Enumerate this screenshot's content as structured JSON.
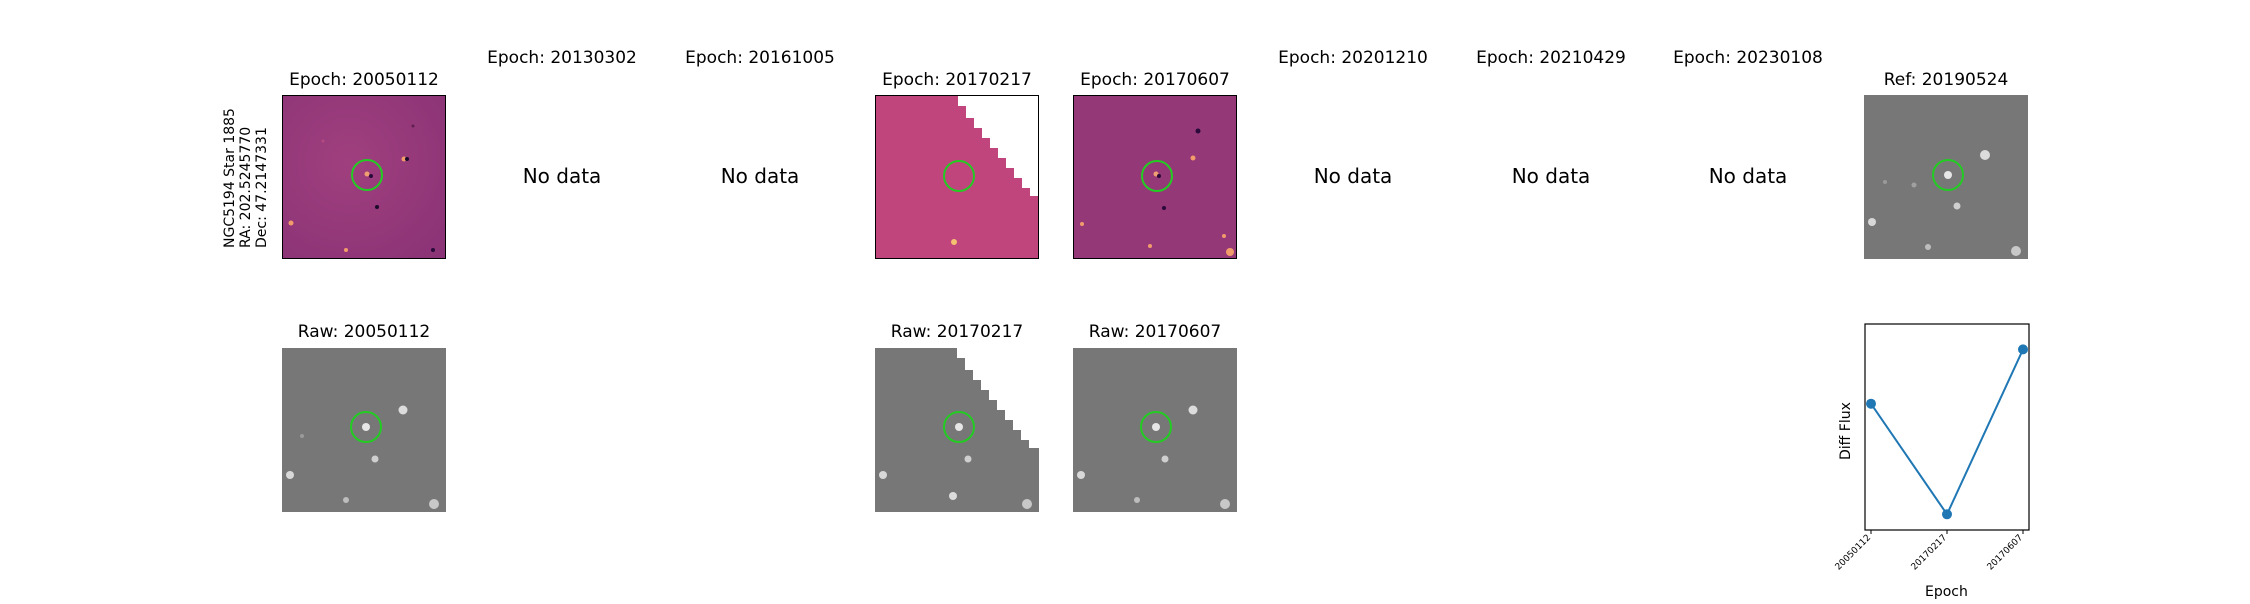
{
  "target": {
    "label_line1": "NGC5194 Star 1885",
    "label_line2": "RA: 202.5245770",
    "label_line3": "Dec: 47.2147331"
  },
  "no_data_text": "No data",
  "epochs": [
    {
      "title": "Epoch: 20050112",
      "has_data": true,
      "raw_title": "Raw: 20050112",
      "style": "diff"
    },
    {
      "title": "Epoch: 20130302",
      "has_data": false
    },
    {
      "title": "Epoch: 20161005",
      "has_data": false
    },
    {
      "title": "Epoch: 20170217",
      "has_data": true,
      "raw_title": "Raw: 20170217",
      "style": "diff-edge"
    },
    {
      "title": "Epoch: 20170607",
      "has_data": true,
      "raw_title": "Raw: 20170607",
      "style": "diff"
    },
    {
      "title": "Epoch: 20201210",
      "has_data": false
    },
    {
      "title": "Epoch: 20210429",
      "has_data": false
    },
    {
      "title": "Epoch: 20230108",
      "has_data": false
    }
  ],
  "reference": {
    "title": "Ref: 20190524"
  },
  "colors": {
    "diff_base": "#9b3a7c",
    "diff_base_alt": "#c0457d",
    "raw_base": "#7a7a7a",
    "marker_circle": "#22cc22",
    "line_series": "#1f77b4"
  },
  "chart_data": {
    "type": "line",
    "xlabel": "Epoch",
    "ylabel": "Diff Flux",
    "categories": [
      "20050112",
      "20170217",
      "20170607"
    ],
    "series": [
      {
        "values": [
          0.62,
          0.05,
          0.9
        ]
      }
    ],
    "ylim": [
      0.0,
      1.0
    ],
    "y_ticks_shown": false
  }
}
